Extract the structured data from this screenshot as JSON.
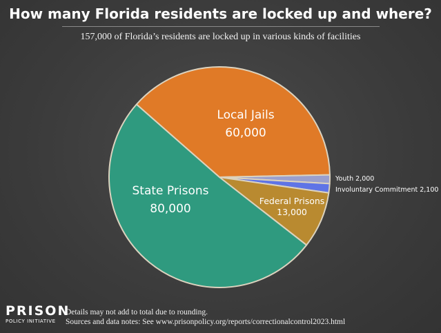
{
  "header": {
    "title": "How many Florida residents are locked up and where?",
    "subtitle": "157,000 of Florida’s residents are locked up in various kinds of facilities"
  },
  "chart_data": {
    "type": "pie",
    "title": "How many Florida residents are locked up and where?",
    "subtitle": "157,000 of Florida’s residents are locked up in various kinds of facilities",
    "slices": [
      {
        "name": "Local Jails",
        "value": 60000,
        "label": "60,000",
        "color": "#e07a27"
      },
      {
        "name": "Youth",
        "value": 2000,
        "label": "2,000",
        "color": "#9a9fce"
      },
      {
        "name": "Involuntary Commitment",
        "value": 2100,
        "label": "2,100",
        "color": "#5f74e6"
      },
      {
        "name": "Federal Prisons",
        "value": 13000,
        "label": "13,000",
        "color": "#b98a30"
      },
      {
        "name": "State Prisons",
        "value": 80000,
        "label": "80,000",
        "color": "#2f9a7f"
      }
    ],
    "start_slice_edge": "upper-left",
    "direction": "clockwise"
  },
  "footer": {
    "logo_main": "PRISON",
    "logo_sub": "POLICY INITIATIVE",
    "note_rounding": "Details may not add to total due to rounding.",
    "note_sources": "Sources and data notes: See www.prisonpolicy.org/reports/correctionalcontrol2023.html"
  }
}
